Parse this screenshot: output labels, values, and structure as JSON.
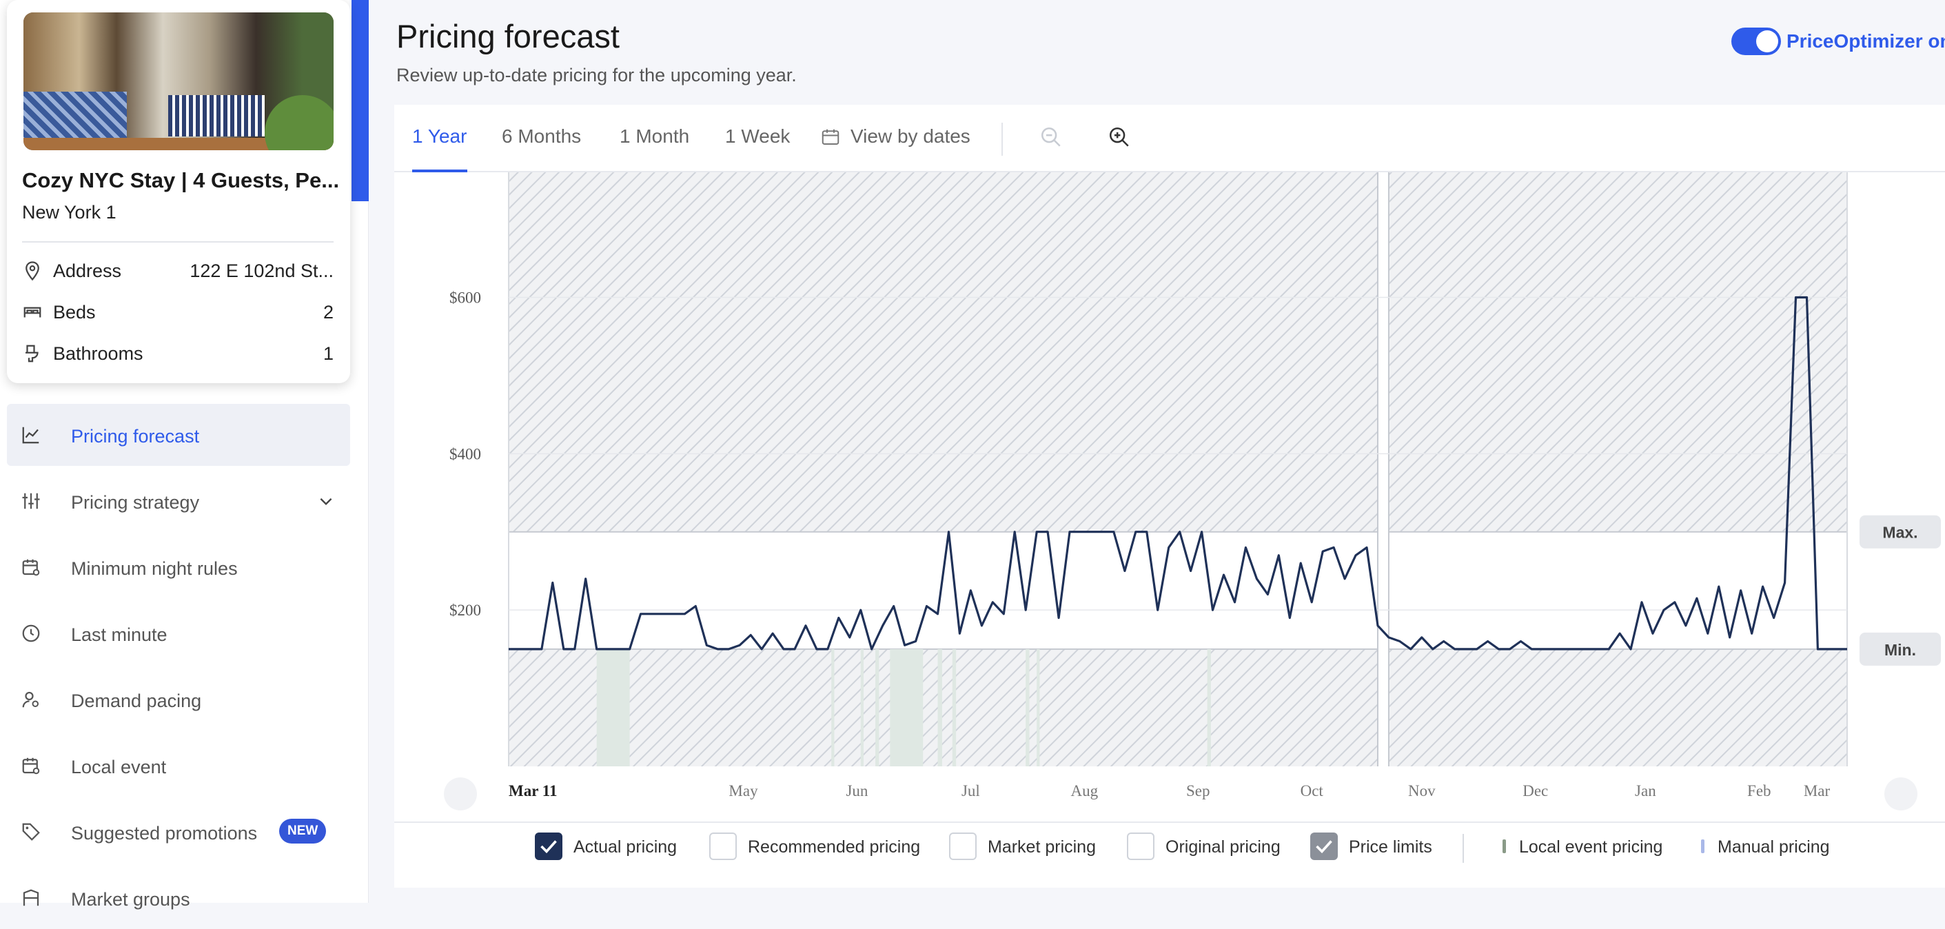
{
  "listing": {
    "title": "Cozy NYC Stay | 4 Guests, Pe...",
    "location": "New York 1",
    "address_label": "Address",
    "address_value": "122 E 102nd St...",
    "beds_label": "Beds",
    "beds_value": "2",
    "baths_label": "Bathrooms",
    "baths_value": "1"
  },
  "nav": {
    "items": [
      {
        "label": "Pricing forecast",
        "icon": "chart-line-icon",
        "active": true
      },
      {
        "label": "Pricing strategy",
        "icon": "sliders-icon",
        "has_chevron": true
      },
      {
        "label": "Minimum night rules",
        "icon": "calendar-settings-icon"
      },
      {
        "label": "Last minute",
        "icon": "clock-icon"
      },
      {
        "label": "Demand pacing",
        "icon": "user-settings-icon"
      },
      {
        "label": "Local event",
        "icon": "calendar-event-icon"
      },
      {
        "label": "Suggested promotions",
        "icon": "tag-icon",
        "badge": "NEW"
      },
      {
        "label": "Market groups",
        "icon": "building-icon"
      }
    ]
  },
  "header": {
    "title": "Pricing forecast",
    "description": "Review up-to-date pricing for the upcoming year.",
    "toggle_label": "PriceOptimizer on",
    "toggle_on": true
  },
  "tabs": {
    "items": [
      "1 Year",
      "6 Months",
      "1 Month",
      "1 Week",
      "View by dates"
    ],
    "active": "1 Year",
    "zoom_out_icon": "zoom-out-icon",
    "zoom_in_icon": "zoom-in-icon",
    "calendar_icon": "calendar-icon"
  },
  "chart_data": {
    "type": "line",
    "y_ticks": [
      "$200",
      "$400",
      "$600"
    ],
    "ylim": [
      0,
      760
    ],
    "x_ticks": [
      "Mar 11",
      "May",
      "Jun",
      "Jul",
      "Aug",
      "Sep",
      "Oct",
      "Nov",
      "Dec",
      "Jan",
      "Feb",
      "Mar"
    ],
    "price_limits": {
      "max": 300,
      "min": 150,
      "max_label": "Max.",
      "min_label": "Min."
    },
    "series": [
      {
        "name": "Actual pricing",
        "color": "#1f3158",
        "x": [
          0,
          3,
          6,
          9,
          12,
          15,
          18,
          21,
          24,
          27,
          30,
          33,
          36,
          39,
          42,
          45,
          48,
          51,
          54,
          57,
          60,
          63,
          66,
          69,
          72,
          75,
          78,
          81,
          84,
          87,
          90,
          93,
          96,
          99,
          102,
          105,
          108,
          111,
          114,
          117,
          120,
          123,
          126,
          129,
          132,
          135,
          138,
          141,
          144,
          147,
          150,
          153,
          156,
          159,
          162,
          165,
          168,
          171,
          174,
          177,
          180,
          183,
          186,
          189,
          192,
          195,
          198,
          201,
          204,
          207,
          210,
          213,
          216,
          219,
          222,
          225,
          228,
          231,
          234,
          237,
          240,
          243,
          246,
          249,
          252,
          255,
          258,
          261,
          264,
          267,
          270,
          273,
          276,
          279,
          282,
          285,
          288,
          291,
          294,
          297,
          300,
          303,
          306,
          309,
          312,
          315,
          318,
          321,
          324,
          327,
          330,
          333,
          336,
          339,
          342,
          345,
          348,
          351,
          354,
          357,
          360,
          363,
          365
        ],
        "values": [
          150,
          150,
          150,
          150,
          235,
          150,
          150,
          240,
          150,
          150,
          150,
          150,
          195,
          195,
          195,
          195,
          195,
          205,
          155,
          150,
          150,
          155,
          168,
          150,
          170,
          150,
          150,
          180,
          150,
          150,
          190,
          165,
          200,
          150,
          180,
          205,
          155,
          160,
          205,
          195,
          300,
          170,
          225,
          180,
          210,
          195,
          300,
          200,
          300,
          300,
          190,
          300,
          300,
          300,
          300,
          300,
          250,
          300,
          300,
          200,
          280,
          300,
          250,
          300,
          200,
          245,
          210,
          280,
          240,
          220,
          270,
          190,
          260,
          210,
          275,
          280,
          240,
          270,
          280,
          180,
          165,
          160,
          150,
          165,
          150,
          160,
          150,
          150,
          150,
          160,
          150,
          150,
          160,
          150,
          150,
          150,
          150,
          150,
          150,
          150,
          150,
          170,
          150,
          210,
          170,
          200,
          210,
          180,
          215,
          170,
          230,
          165,
          225,
          170,
          230,
          190,
          235,
          600,
          600,
          150,
          150,
          150,
          150
        ]
      }
    ],
    "local_event_dates": [
      "Apr 23 - May 2",
      "Jun 12",
      "Jun 20",
      "Jun 24",
      "Jun 28 - Jul 4",
      "Jul 8",
      "Jul 12",
      "Aug 1",
      "Aug 4"
    ],
    "legend": [
      {
        "label": "Actual pricing",
        "checked": true
      },
      {
        "label": "Recommended pricing",
        "checked": false
      },
      {
        "label": "Market pricing",
        "checked": false
      },
      {
        "label": "Original pricing",
        "checked": false
      },
      {
        "label": "Price limits",
        "checked": true
      },
      {
        "label": "Local event pricing",
        "color": "#8a9b88"
      },
      {
        "label": "Manual pricing",
        "color": "#a9b8e8"
      }
    ]
  },
  "colors": {
    "accent": "#2f5bea",
    "line": "#1f3158",
    "event_fill": "#dfe8e3"
  }
}
